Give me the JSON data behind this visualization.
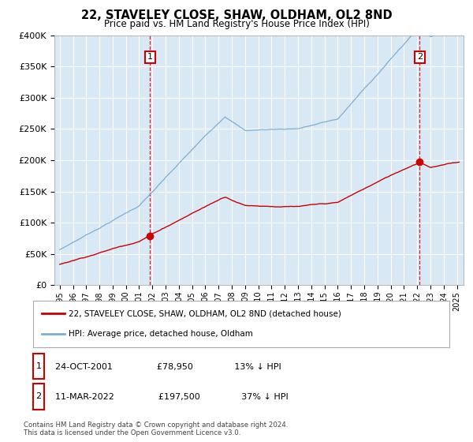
{
  "title": "22, STAVELEY CLOSE, SHAW, OLDHAM, OL2 8ND",
  "subtitle": "Price paid vs. HM Land Registry's House Price Index (HPI)",
  "ylabel_ticks": [
    "£0",
    "£50K",
    "£100K",
    "£150K",
    "£200K",
    "£250K",
    "£300K",
    "£350K",
    "£400K"
  ],
  "ylim": [
    0,
    400000
  ],
  "ytick_vals": [
    0,
    50000,
    100000,
    150000,
    200000,
    250000,
    300000,
    350000,
    400000
  ],
  "sale1": {
    "year": 2001.82,
    "price": 78950,
    "label": "1",
    "date": "24-OCT-2001",
    "hpi_diff": "13% ↓ HPI"
  },
  "sale2": {
    "year": 2022.19,
    "price": 197500,
    "label": "2",
    "date": "11-MAR-2022",
    "hpi_diff": "37% ↓ HPI"
  },
  "legend_property": "22, STAVELEY CLOSE, SHAW, OLDHAM, OL2 8ND (detached house)",
  "legend_hpi": "HPI: Average price, detached house, Oldham",
  "footnote": "Contains HM Land Registry data © Crown copyright and database right 2024.\nThis data is licensed under the Open Government Licence v3.0.",
  "property_line_color": "#cc0000",
  "hpi_line_color": "#7bafd4",
  "background_color": "#ffffff",
  "plot_bg_color": "#d9e8f5",
  "grid_color": "#ffffff",
  "vline_color": "#cc0000",
  "box_color": "#cc0000"
}
